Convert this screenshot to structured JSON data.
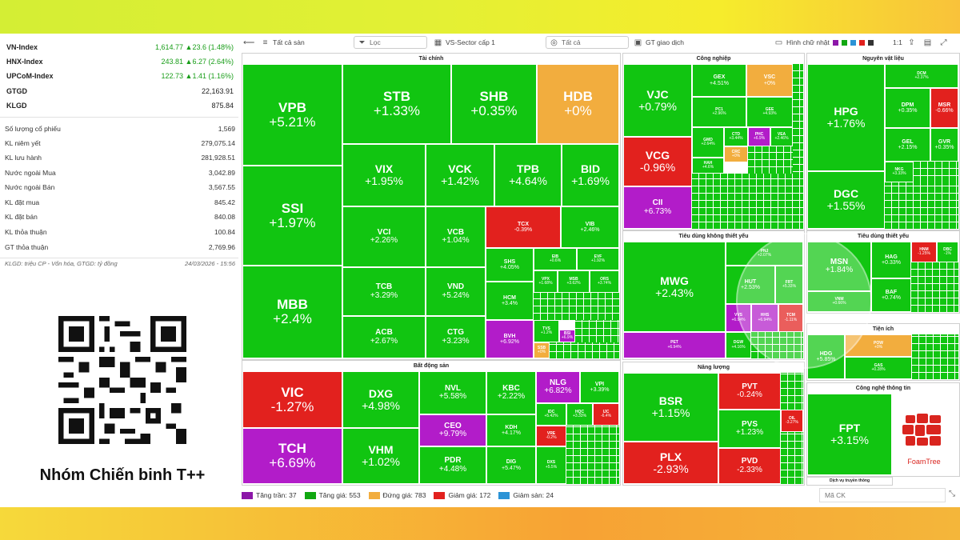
{
  "indices": [
    {
      "name": "VN-Index",
      "value": "1,614.77",
      "change": "▲23.6 (1.48%)"
    },
    {
      "name": "HNX-Index",
      "value": "243.81",
      "change": "▲6.27 (2.64%)"
    },
    {
      "name": "UPCoM-Index",
      "value": "122.73",
      "change": "▲1.41 (1.16%)"
    },
    {
      "name": "GTGD",
      "value": "22,163.91",
      "change": ""
    },
    {
      "name": "KLGD",
      "value": "875.84",
      "change": ""
    }
  ],
  "stats": [
    {
      "label": "Số lượng cổ phiếu",
      "value": "1,569"
    },
    {
      "label": "KL niêm yết",
      "value": "279,075.14"
    },
    {
      "label": "KL lưu hành",
      "value": "281,928.51"
    },
    {
      "label": "Nước ngoài Mua",
      "value": "3,042.89"
    },
    {
      "label": "Nước ngoài Bán",
      "value": "3,567.55"
    },
    {
      "label": "KL đặt mua",
      "value": "845.42"
    },
    {
      "label": "KL đặt bán",
      "value": "840.08"
    },
    {
      "label": "KL thỏa thuận",
      "value": "100.84"
    },
    {
      "label": "GT thỏa thuận",
      "value": "2,769.96"
    }
  ],
  "note": {
    "left": "KLGD: triệu CP - Vốn hóa, GTGD: tỷ đồng",
    "right": "24/03/2026 - 15:56"
  },
  "brand": "Nhóm Chiến binh T++",
  "toolbar": {
    "exchange": "Tất cả sàn",
    "filter": "Lọc",
    "sector": "VS-Sector cấp 1",
    "all": "Tất cả",
    "metric": "GT giao dịch",
    "shape": "Hình chữ nhật",
    "ratio": "1:1"
  },
  "sections": {
    "taichinh": "Tài chính",
    "congnghiep": "Công nghiệp",
    "nguyenvatlieu": "Nguyên vật liệu",
    "batdongsan": "Bất động sản",
    "tieudungkhong": "Tiêu dùng không thiết yếu",
    "tieudungthietyeu": "Tiêu dùng thiết yếu",
    "tienich": "Tiện ích",
    "nangluong": "Năng lượng",
    "congnghe": "Công nghệ thông tin",
    "dichvu": "Dịch vụ truyền thông"
  },
  "tiles": {
    "VPB": {
      "k": "VPB",
      "p": "+5.21%"
    },
    "SSI": {
      "k": "SSI",
      "p": "+1.97%"
    },
    "MBB": {
      "k": "MBB",
      "p": "+2.4%"
    },
    "STB": {
      "k": "STB",
      "p": "+1.33%"
    },
    "SHB": {
      "k": "SHB",
      "p": "+0.35%"
    },
    "HDB": {
      "k": "HDB",
      "p": "+0%"
    },
    "VIX": {
      "k": "VIX",
      "p": "+1.95%"
    },
    "VCK": {
      "k": "VCK",
      "p": "+1.42%"
    },
    "TPB": {
      "k": "TPB",
      "p": "+4.64%"
    },
    "BID": {
      "k": "BID",
      "p": "+1.69%"
    },
    "VCI": {
      "k": "VCI",
      "p": "+2.26%"
    },
    "VCB": {
      "k": "VCB",
      "p": "+1.04%"
    },
    "TCX": {
      "k": "TCX",
      "p": "-0.39%"
    },
    "VIB": {
      "k": "VIB",
      "p": "+2.46%"
    },
    "TCB": {
      "k": "TCB",
      "p": "+3.29%"
    },
    "VND": {
      "k": "VND",
      "p": "+5.24%"
    },
    "SHS": {
      "k": "SHS",
      "p": "+4.05%"
    },
    "EIB": {
      "k": "EIB",
      "p": "+0.6%"
    },
    "EVF": {
      "k": "EVF",
      "p": "+1.92%"
    },
    "HCM": {
      "k": "HCM",
      "p": "+3.4%"
    },
    "VPX": {
      "k": "VPX",
      "p": "+1.68%"
    },
    "MSB": {
      "k": "MSB",
      "p": "+3.62%"
    },
    "ORS": {
      "k": "ORS",
      "p": "+3.74%"
    },
    "ACB": {
      "k": "ACB",
      "p": "+2.67%"
    },
    "CTG": {
      "k": "CTG",
      "p": "+3.23%"
    },
    "BVH": {
      "k": "BVH",
      "p": "+6.92%"
    },
    "TVS": {
      "k": "TVS",
      "p": "+1.2%"
    },
    "SSB": {
      "k": "SSB",
      "p": "+0%"
    },
    "BSI": {
      "k": "BSI",
      "p": "+6.9%"
    },
    "VJC": {
      "k": "VJC",
      "p": "+0.79%"
    },
    "GEX": {
      "k": "GEX",
      "p": "+4.51%"
    },
    "VSC": {
      "k": "VSC",
      "p": "+0%"
    },
    "PC1": {
      "k": "PC1",
      "p": "+2.96%"
    },
    "GEE": {
      "k": "GEE",
      "p": "+4.93%"
    },
    "VCG": {
      "k": "VCG",
      "p": "-0.96%"
    },
    "GMD": {
      "k": "GMD",
      "p": "+2.64%"
    },
    "CTD": {
      "k": "CTD",
      "p": "+3.44%"
    },
    "PHC": {
      "k": "PHC",
      "p": "+6.9%"
    },
    "VEA": {
      "k": "VEA",
      "p": "+2.46%"
    },
    "CII": {
      "k": "CII",
      "p": "+6.73%"
    },
    "HAH": {
      "k": "HAH",
      "p": "+4.6%"
    },
    "CRC": {
      "k": "CRC",
      "p": "+0%"
    },
    "HPG": {
      "k": "HPG",
      "p": "+1.76%"
    },
    "DCM": {
      "k": "DCM",
      "p": "+2.37%"
    },
    "DPM": {
      "k": "DPM",
      "p": "+0.35%"
    },
    "MSR": {
      "k": "MSR",
      "p": "-0.66%"
    },
    "GEL": {
      "k": "GEL",
      "p": "+2.15%"
    },
    "GVR": {
      "k": "GVR",
      "p": "+0.35%"
    },
    "DGC": {
      "k": "DGC",
      "p": "+1.55%"
    },
    "NKG": {
      "k": "NKG",
      "p": "+3.33%"
    },
    "VIC": {
      "k": "VIC",
      "p": "-1.27%"
    },
    "TCH": {
      "k": "TCH",
      "p": "+6.69%"
    },
    "DXG": {
      "k": "DXG",
      "p": "+4.98%"
    },
    "VHM": {
      "k": "VHM",
      "p": "+1.02%"
    },
    "NVL": {
      "k": "NVL",
      "p": "+5.58%"
    },
    "KBC": {
      "k": "KBC",
      "p": "+2.22%"
    },
    "NLG": {
      "k": "NLG",
      "p": "+6.82%"
    },
    "VPI": {
      "k": "VPI",
      "p": "+3.39%"
    },
    "CEO": {
      "k": "CEO",
      "p": "+9.79%"
    },
    "KDH": {
      "k": "KDH",
      "p": "+4.17%"
    },
    "IDC": {
      "k": "IDC",
      "p": "+5.42%"
    },
    "HQC": {
      "k": "HQC",
      "p": "+3.33%"
    },
    "IJC": {
      "k": "IJC",
      "p": "-6.4%"
    },
    "VRE": {
      "k": "VRE",
      "p": "-0.2%"
    },
    "PDR": {
      "k": "PDR",
      "p": "+4.48%"
    },
    "DIG": {
      "k": "DIG",
      "p": "+5.47%"
    },
    "DXS": {
      "k": "DXS",
      "p": "+5.5%"
    },
    "MWG": {
      "k": "MWG",
      "p": "+2.43%"
    },
    "PNJ": {
      "k": "PNJ",
      "p": "+2.07%"
    },
    "HUT": {
      "k": "HUT",
      "p": "+2.53%"
    },
    "FRT": {
      "k": "FRT",
      "p": "+5.33%"
    },
    "VVS": {
      "k": "VVS",
      "p": "+6.94%"
    },
    "HHS": {
      "k": "HHS",
      "p": "+6.94%"
    },
    "TCM": {
      "k": "TCM",
      "p": "-1.11%"
    },
    "DGW": {
      "k": "DGW",
      "p": "+4.16%"
    },
    "PET": {
      "k": "PET",
      "p": "+6.94%"
    },
    "MSN": {
      "k": "MSN",
      "p": "+1.84%"
    },
    "HAG": {
      "k": "HAG",
      "p": "+0.33%"
    },
    "HNM": {
      "k": "HNM",
      "p": "-1.25%"
    },
    "DBC": {
      "k": "DBC",
      "p": "-1%"
    },
    "VNM": {
      "k": "VNM",
      "p": "+0.66%"
    },
    "BAF": {
      "k": "BAF",
      "p": "+0.74%"
    },
    "HDG": {
      "k": "HDG",
      "p": "+5.85%"
    },
    "POW": {
      "k": "POW",
      "p": "+0%"
    },
    "GAS": {
      "k": "GAS",
      "p": "+0.28%"
    },
    "BSR": {
      "k": "BSR",
      "p": "+1.15%"
    },
    "PVT": {
      "k": "PVT",
      "p": "-0.24%"
    },
    "PVS": {
      "k": "PVS",
      "p": "+1.23%"
    },
    "OIL": {
      "k": "OIL",
      "p": "-3.27%"
    },
    "PLX": {
      "k": "PLX",
      "p": "-2.93%"
    },
    "PVD": {
      "k": "PVD",
      "p": "-2.33%"
    },
    "FPT": {
      "k": "FPT",
      "p": "+3.15%"
    }
  },
  "legend": [
    {
      "label": "Tăng trần: 37",
      "color": "#8c17a8"
    },
    {
      "label": "Tăng giá: 553",
      "color": "#11a711"
    },
    {
      "label": "Đứng giá: 783",
      "color": "#f2ad3e"
    },
    {
      "label": "Giảm giá: 172",
      "color": "#e2211e"
    },
    {
      "label": "Giảm sàn: 24",
      "color": "#2b93d6"
    }
  ],
  "search_placeholder": "Mã CK",
  "foamtree": "FoamTree"
}
